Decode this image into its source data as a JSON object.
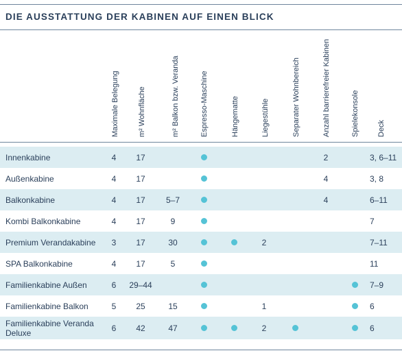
{
  "title": "DIE AUSSTATTUNG DER KABINEN AUF EINEN BLICK",
  "columns": [
    "Maximale Belegung",
    "m² Wohnfläche",
    "m² Balkon bzw. Veranda",
    "Espresso-Maschine",
    "Hängematte",
    "Liegestühle",
    "Separater Wohnbereich",
    "Anzahl barrierefreier Kabinen",
    "Spielekonsole",
    "Deck"
  ],
  "rows": [
    {
      "name": "Innenkabine",
      "belegung": "4",
      "wohnflaeche": "17",
      "balkon": "",
      "espresso": true,
      "haengematte": false,
      "liegestuehle": "",
      "wohnbereich": false,
      "barrierefrei": "2",
      "konsole": false,
      "deck": "3, 6–11"
    },
    {
      "name": "Außenkabine",
      "belegung": "4",
      "wohnflaeche": "17",
      "balkon": "",
      "espresso": true,
      "haengematte": false,
      "liegestuehle": "",
      "wohnbereich": false,
      "barrierefrei": "4",
      "konsole": false,
      "deck": "3, 8"
    },
    {
      "name": "Balkonkabine",
      "belegung": "4",
      "wohnflaeche": "17",
      "balkon": "5–7",
      "espresso": true,
      "haengematte": false,
      "liegestuehle": "",
      "wohnbereich": false,
      "barrierefrei": "4",
      "konsole": false,
      "deck": "6–11"
    },
    {
      "name": "Kombi Balkonkabine",
      "belegung": "4",
      "wohnflaeche": "17",
      "balkon": "9",
      "espresso": true,
      "haengematte": false,
      "liegestuehle": "",
      "wohnbereich": false,
      "barrierefrei": "",
      "konsole": false,
      "deck": "7"
    },
    {
      "name": "Premium Verandakabine",
      "belegung": "3",
      "wohnflaeche": "17",
      "balkon": "30",
      "espresso": true,
      "haengematte": true,
      "liegestuehle": "2",
      "wohnbereich": false,
      "barrierefrei": "",
      "konsole": false,
      "deck": "7–11"
    },
    {
      "name": "SPA Balkonkabine",
      "belegung": "4",
      "wohnflaeche": "17",
      "balkon": "5",
      "espresso": true,
      "haengematte": false,
      "liegestuehle": "",
      "wohnbereich": false,
      "barrierefrei": "",
      "konsole": false,
      "deck": "11"
    },
    {
      "name": "Familienkabine Außen",
      "belegung": "6",
      "wohnflaeche": "29–44",
      "balkon": "",
      "espresso": true,
      "haengematte": false,
      "liegestuehle": "",
      "wohnbereich": false,
      "barrierefrei": "",
      "konsole": true,
      "deck": "7–9"
    },
    {
      "name": "Familienkabine Balkon",
      "belegung": "5",
      "wohnflaeche": "25",
      "balkon": "15",
      "espresso": true,
      "haengematte": false,
      "liegestuehle": "1",
      "wohnbereich": false,
      "barrierefrei": "",
      "konsole": true,
      "deck": "6"
    },
    {
      "name": "Familienkabine Veranda Deluxe",
      "belegung": "6",
      "wohnflaeche": "42",
      "balkon": "47",
      "espresso": true,
      "haengematte": true,
      "liegestuehle": "2",
      "wohnbereich": true,
      "barrierefrei": "",
      "konsole": true,
      "deck": "6"
    }
  ],
  "colors": {
    "text": "#2a3f5a",
    "shade": "#dcedf2",
    "dot": "#55c3d6",
    "rule": "#6e859c"
  }
}
